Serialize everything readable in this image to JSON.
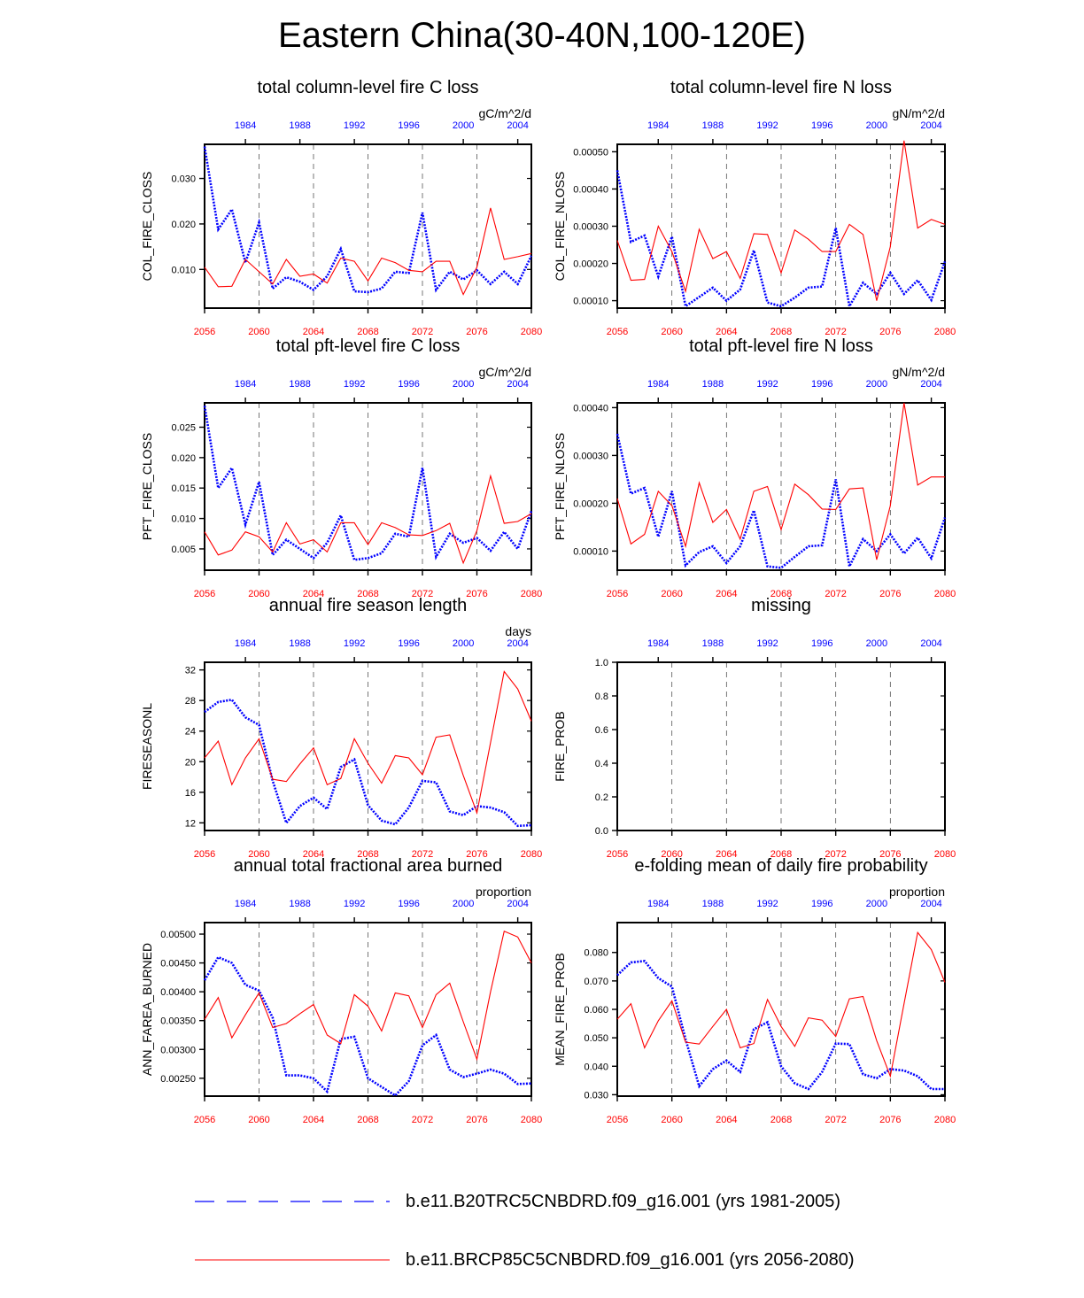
{
  "title": "Eastern China(30-40N,100-120E)",
  "colors": {
    "base": "#0000ff",
    "future": "#ff0000"
  },
  "legend": [
    {
      "label": "b.e11.B20TRC5CNBDRD.f09_g16.001 (yrs 1981-2005)",
      "color": "#0000ff",
      "style": "dashed"
    },
    {
      "label": "b.e11.BRCP85C5CNBDRD.f09_g16.001 (yrs 2056-2080)",
      "color": "#ff0000",
      "style": "solid"
    }
  ],
  "chart_data": [
    {
      "type": "line",
      "title": "total column-level fire C loss",
      "ylabel": "COL_FIRE_CLOSS",
      "units": "gC/m^2/d",
      "ylim": [
        0.0015,
        0.0375
      ],
      "yticks": [
        0.01,
        0.02,
        0.03
      ],
      "ytick_labels": [
        "0.010",
        "0.020",
        "0.030"
      ],
      "series": [
        {
          "color": "#0000ff",
          "style": "dashed",
          "x_axis": "top",
          "x": [
            1981,
            1982,
            1983,
            1984,
            1985,
            1986,
            1987,
            1988,
            1989,
            1990,
            1991,
            1992,
            1993,
            1994,
            1995,
            1996,
            1997,
            1998,
            1999,
            2000,
            2001,
            2002,
            2003,
            2004,
            2005
          ],
          "values": [
            0.037,
            0.0188,
            0.0232,
            0.0115,
            0.0203,
            0.0058,
            0.0083,
            0.0073,
            0.0055,
            0.0085,
            0.0145,
            0.0052,
            0.005,
            0.0058,
            0.0095,
            0.0092,
            0.0225,
            0.0055,
            0.0095,
            0.0078,
            0.0098,
            0.0068,
            0.0095,
            0.0068,
            0.013
          ]
        },
        {
          "color": "#ff0000",
          "style": "solid",
          "x_axis": "bottom",
          "x": [
            2056,
            2057,
            2058,
            2059,
            2060,
            2061,
            2062,
            2063,
            2064,
            2065,
            2066,
            2067,
            2068,
            2069,
            2070,
            2071,
            2072,
            2073,
            2074,
            2075,
            2076,
            2077,
            2078,
            2079,
            2080
          ],
          "values": [
            0.0105,
            0.0062,
            0.0063,
            0.0122,
            0.0095,
            0.0068,
            0.0122,
            0.0085,
            0.009,
            0.007,
            0.0125,
            0.0118,
            0.0075,
            0.0125,
            0.0115,
            0.0098,
            0.0095,
            0.0118,
            0.0118,
            0.0045,
            0.0105,
            0.0235,
            0.0122,
            0.0128,
            0.0135
          ]
        }
      ]
    },
    {
      "type": "line",
      "title": "total column-level fire N loss",
      "ylabel": "COL_FIRE_NLOSS",
      "units": "gN/m^2/d",
      "ylim": [
        8e-05,
        0.00052
      ],
      "yticks": [
        0.0001,
        0.0002,
        0.0003,
        0.0004,
        0.0005
      ],
      "ytick_labels": [
        "0.00010",
        "0.00020",
        "0.00030",
        "0.00040",
        "0.00050"
      ],
      "series": [
        {
          "color": "#0000ff",
          "style": "dashed",
          "x_axis": "top",
          "x": [
            1981,
            1982,
            1983,
            1984,
            1985,
            1986,
            1987,
            1988,
            1989,
            1990,
            1991,
            1992,
            1993,
            1994,
            1995,
            1996,
            1997,
            1998,
            1999,
            2000,
            2001,
            2002,
            2003,
            2004,
            2005
          ],
          "values": [
            0.00045,
            0.000258,
            0.000275,
            0.000165,
            0.000272,
            8.5e-05,
            0.00011,
            0.000135,
            0.0001,
            0.00013,
            0.000235,
            9.5e-05,
            8.5e-05,
            0.000108,
            0.000135,
            0.000138,
            0.000295,
            8.5e-05,
            0.000148,
            0.000118,
            0.000175,
            0.000118,
            0.000155,
            0.000102,
            0.000205
          ]
        },
        {
          "color": "#ff0000",
          "style": "solid",
          "x_axis": "bottom",
          "x": [
            2056,
            2057,
            2058,
            2059,
            2060,
            2061,
            2062,
            2063,
            2064,
            2065,
            2066,
            2067,
            2068,
            2069,
            2070,
            2071,
            2072,
            2073,
            2074,
            2075,
            2076,
            2077,
            2078,
            2079,
            2080
          ],
          "values": [
            0.000262,
            0.000155,
            0.000157,
            0.0003,
            0.000232,
            0.000125,
            0.000292,
            0.000213,
            0.000232,
            0.00016,
            0.00028,
            0.000278,
            0.000175,
            0.00029,
            0.000265,
            0.000232,
            0.000232,
            0.000305,
            0.000278,
            0.0001,
            0.000245,
            0.00053,
            0.000295,
            0.000318,
            0.000305
          ]
        }
      ]
    },
    {
      "type": "line",
      "title": "total pft-level fire C loss",
      "ylabel": "PFT_FIRE_CLOSS",
      "units": "gC/m^2/d",
      "ylim": [
        0.0015,
        0.029
      ],
      "yticks": [
        0.005,
        0.01,
        0.015,
        0.02,
        0.025
      ],
      "ytick_labels": [
        "0.005",
        "0.010",
        "0.015",
        "0.020",
        "0.025"
      ],
      "series": [
        {
          "color": "#0000ff",
          "style": "dashed",
          "x_axis": "top",
          "x": [
            1981,
            1982,
            1983,
            1984,
            1985,
            1986,
            1987,
            1988,
            1989,
            1990,
            1991,
            1992,
            1993,
            1994,
            1995,
            1996,
            1997,
            1998,
            1999,
            2000,
            2001,
            2002,
            2003,
            2004,
            2005
          ],
          "values": [
            0.0285,
            0.015,
            0.0183,
            0.009,
            0.016,
            0.004,
            0.0065,
            0.005,
            0.0035,
            0.006,
            0.0105,
            0.0032,
            0.0035,
            0.0043,
            0.0075,
            0.007,
            0.0183,
            0.0037,
            0.0075,
            0.006,
            0.0068,
            0.0047,
            0.0078,
            0.005,
            0.0112
          ]
        },
        {
          "color": "#ff0000",
          "style": "solid",
          "x_axis": "bottom",
          "x": [
            2056,
            2057,
            2058,
            2059,
            2060,
            2061,
            2062,
            2063,
            2064,
            2065,
            2066,
            2067,
            2068,
            2069,
            2070,
            2071,
            2072,
            2073,
            2074,
            2075,
            2076,
            2077,
            2078,
            2079,
            2080
          ],
          "values": [
            0.0078,
            0.004,
            0.0048,
            0.0078,
            0.007,
            0.0045,
            0.0093,
            0.0058,
            0.0065,
            0.0045,
            0.0093,
            0.0093,
            0.0057,
            0.0093,
            0.0085,
            0.0073,
            0.0072,
            0.008,
            0.0092,
            0.0027,
            0.008,
            0.017,
            0.0092,
            0.0095,
            0.0108
          ]
        }
      ]
    },
    {
      "type": "line",
      "title": "total pft-level fire N loss",
      "ylabel": "PFT_FIRE_NLOSS",
      "units": "gN/m^2/d",
      "ylim": [
        6e-05,
        0.00041
      ],
      "yticks": [
        0.0001,
        0.0002,
        0.0003,
        0.0004
      ],
      "ytick_labels": [
        "0.00010",
        "0.00020",
        "0.00030",
        "0.00040"
      ],
      "series": [
        {
          "color": "#0000ff",
          "style": "dashed",
          "x_axis": "top",
          "x": [
            1981,
            1982,
            1983,
            1984,
            1985,
            1986,
            1987,
            1988,
            1989,
            1990,
            1991,
            1992,
            1993,
            1994,
            1995,
            1996,
            1997,
            1998,
            1999,
            2000,
            2001,
            2002,
            2003,
            2004,
            2005
          ],
          "values": [
            0.000345,
            0.00022,
            0.000232,
            0.00013,
            0.000225,
            7e-05,
            9.8e-05,
            0.00011,
            7.5e-05,
            0.00011,
            0.000185,
            6.8e-05,
            6.5e-05,
            8.8e-05,
            0.00011,
            0.000112,
            0.00025,
            6.8e-05,
            0.000125,
            0.0001,
            0.000135,
            9.5e-05,
            0.000128,
            8.5e-05,
            0.00017
          ]
        },
        {
          "color": "#ff0000",
          "style": "solid",
          "x_axis": "bottom",
          "x": [
            2056,
            2057,
            2058,
            2059,
            2060,
            2061,
            2062,
            2063,
            2064,
            2065,
            2066,
            2067,
            2068,
            2069,
            2070,
            2071,
            2072,
            2073,
            2074,
            2075,
            2076,
            2077,
            2078,
            2079,
            2080
          ],
          "values": [
            0.00021,
            0.000115,
            0.000135,
            0.000225,
            0.000195,
            0.00011,
            0.000243,
            0.00016,
            0.000187,
            0.000125,
            0.000225,
            0.000235,
            0.000145,
            0.00024,
            0.000218,
            0.000188,
            0.000187,
            0.00023,
            0.000232,
            8.2e-05,
            0.000195,
            0.00041,
            0.000238,
            0.000255,
            0.000255
          ]
        }
      ]
    },
    {
      "type": "line",
      "title": "annual fire season length",
      "ylabel": "FIRESEASONL",
      "units": "days",
      "ylim": [
        11,
        33
      ],
      "yticks": [
        12,
        16,
        20,
        24,
        28,
        32
      ],
      "ytick_labels": [
        "12",
        "16",
        "20",
        "24",
        "28",
        "32"
      ],
      "series": [
        {
          "color": "#0000ff",
          "style": "dashed",
          "x_axis": "top",
          "x": [
            1981,
            1982,
            1983,
            1984,
            1985,
            1986,
            1987,
            1988,
            1989,
            1990,
            1991,
            1992,
            1993,
            1994,
            1995,
            1996,
            1997,
            1998,
            1999,
            2000,
            2001,
            2002,
            2003,
            2004,
            2005
          ],
          "values": [
            26.5,
            27.8,
            28.1,
            25.8,
            24.8,
            17.5,
            12.0,
            14.2,
            15.3,
            13.8,
            19.3,
            20.3,
            14.3,
            12.3,
            11.8,
            14.0,
            17.5,
            17.3,
            13.5,
            13.0,
            14.2,
            14.0,
            13.4,
            11.6,
            11.7
          ]
        },
        {
          "color": "#ff0000",
          "style": "solid",
          "x_axis": "bottom",
          "x": [
            2056,
            2057,
            2058,
            2059,
            2060,
            2061,
            2062,
            2063,
            2064,
            2065,
            2066,
            2067,
            2068,
            2069,
            2070,
            2071,
            2072,
            2073,
            2074,
            2075,
            2076,
            2077,
            2078,
            2079,
            2080
          ],
          "values": [
            20.5,
            22.7,
            17.0,
            20.5,
            23.0,
            17.7,
            17.4,
            19.7,
            21.8,
            17.0,
            17.8,
            23.0,
            19.8,
            17.2,
            20.8,
            20.5,
            18.3,
            23.2,
            23.5,
            18.2,
            13.3,
            22.5,
            31.8,
            29.5,
            25.3
          ]
        }
      ]
    },
    {
      "type": "line",
      "title": "missing",
      "ylabel": "FIRE_PROB",
      "units": "",
      "ylim": [
        0,
        1
      ],
      "yticks": [
        0,
        0.2,
        0.4,
        0.6,
        0.8,
        1.0
      ],
      "ytick_labels": [
        "0.0",
        "0.2",
        "0.4",
        "0.6",
        "0.8",
        "1.0"
      ],
      "series": []
    },
    {
      "type": "line",
      "title": "annual total fractional area burned",
      "ylabel": "ANN_FAREA_BURNED",
      "units": "proportion",
      "ylim": [
        0.00219,
        0.0052
      ],
      "yticks": [
        0.0025,
        0.003,
        0.0035,
        0.004,
        0.0045,
        0.005
      ],
      "ytick_labels": [
        "0.00250",
        "0.00300",
        "0.00350",
        "0.00400",
        "0.00450",
        "0.00500"
      ],
      "series": [
        {
          "color": "#0000ff",
          "style": "dashed",
          "x_axis": "top",
          "x": [
            1981,
            1982,
            1983,
            1984,
            1985,
            1986,
            1987,
            1988,
            1989,
            1990,
            1991,
            1992,
            1993,
            1994,
            1995,
            1996,
            1997,
            1998,
            1999,
            2000,
            2001,
            2002,
            2003,
            2004,
            2005
          ],
          "values": [
            0.0042,
            0.0046,
            0.0045,
            0.00412,
            0.00402,
            0.00355,
            0.00255,
            0.00255,
            0.0025,
            0.00227,
            0.00318,
            0.00322,
            0.0025,
            0.00235,
            0.0022,
            0.00245,
            0.00307,
            0.00325,
            0.00265,
            0.00252,
            0.00258,
            0.00265,
            0.00258,
            0.0024,
            0.00241
          ]
        },
        {
          "color": "#ff0000",
          "style": "solid",
          "x_axis": "bottom",
          "x": [
            2056,
            2057,
            2058,
            2059,
            2060,
            2061,
            2062,
            2063,
            2064,
            2065,
            2066,
            2067,
            2068,
            2069,
            2070,
            2071,
            2072,
            2073,
            2074,
            2075,
            2076,
            2077,
            2078,
            2079,
            2080
          ],
          "values": [
            0.00352,
            0.0039,
            0.0032,
            0.0036,
            0.00398,
            0.00338,
            0.00345,
            0.00362,
            0.00378,
            0.00325,
            0.0031,
            0.00395,
            0.00375,
            0.00332,
            0.00398,
            0.00393,
            0.00338,
            0.00395,
            0.00415,
            0.00348,
            0.00283,
            0.004,
            0.00505,
            0.00495,
            0.0045
          ]
        }
      ]
    },
    {
      "type": "line",
      "title": "e-folding mean of daily fire probability",
      "ylabel": "MEAN_FIRE_PROB",
      "units": "proportion",
      "ylim": [
        0.0295,
        0.0905
      ],
      "yticks": [
        0.03,
        0.04,
        0.05,
        0.06,
        0.07,
        0.08
      ],
      "ytick_labels": [
        "0.030",
        "0.040",
        "0.050",
        "0.060",
        "0.070",
        "0.080"
      ],
      "series": [
        {
          "color": "#0000ff",
          "style": "dashed",
          "x_axis": "top",
          "x": [
            1981,
            1982,
            1983,
            1984,
            1985,
            1986,
            1987,
            1988,
            1989,
            1990,
            1991,
            1992,
            1993,
            1994,
            1995,
            1996,
            1997,
            1998,
            1999,
            2000,
            2001,
            2002,
            2003,
            2004,
            2005
          ],
          "values": [
            0.072,
            0.0765,
            0.077,
            0.071,
            0.068,
            0.0495,
            0.033,
            0.039,
            0.042,
            0.038,
            0.053,
            0.0555,
            0.04,
            0.034,
            0.032,
            0.038,
            0.048,
            0.0478,
            0.0372,
            0.0358,
            0.039,
            0.0385,
            0.0365,
            0.032,
            0.032
          ]
        },
        {
          "color": "#ff0000",
          "style": "solid",
          "x_axis": "bottom",
          "x": [
            2056,
            2057,
            2058,
            2059,
            2060,
            2061,
            2062,
            2063,
            2064,
            2065,
            2066,
            2067,
            2068,
            2069,
            2070,
            2071,
            2072,
            2073,
            2074,
            2075,
            2076,
            2077,
            2078,
            2079,
            2080
          ],
          "values": [
            0.0565,
            0.062,
            0.0465,
            0.056,
            0.063,
            0.0485,
            0.0478,
            0.054,
            0.06,
            0.0465,
            0.048,
            0.0635,
            0.054,
            0.047,
            0.057,
            0.0562,
            0.0505,
            0.0637,
            0.0645,
            0.049,
            0.0365,
            0.062,
            0.087,
            0.081,
            0.0695
          ]
        }
      ]
    }
  ],
  "x_bottom_ticks": [
    "2056",
    "2060",
    "2064",
    "2068",
    "2072",
    "2076",
    "2080"
  ],
  "x_top_ticks": [
    "1984",
    "1988",
    "1992",
    "1996",
    "2000",
    "2004"
  ]
}
